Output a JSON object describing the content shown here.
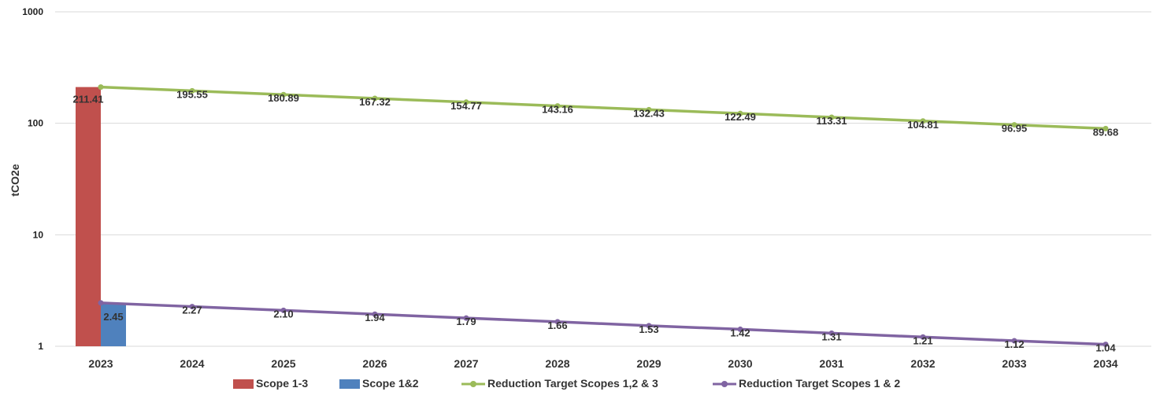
{
  "chart_data": {
    "type": "bar",
    "categories": [
      "2023",
      "2024",
      "2025",
      "2026",
      "2027",
      "2028",
      "2029",
      "2030",
      "2031",
      "2032",
      "2033",
      "2034"
    ],
    "ylabel": "tCO2e",
    "xlabel": "",
    "yscale": "log",
    "ylim": [
      1,
      1000
    ],
    "yticks": [
      "1",
      "10",
      "100",
      "1000"
    ],
    "grid": true,
    "legend_position": "bottom",
    "series": [
      {
        "name": "Scope 1-3",
        "kind": "bar",
        "color": "#c0504d",
        "values": [
          211.41,
          null,
          null,
          null,
          null,
          null,
          null,
          null,
          null,
          null,
          null,
          null
        ]
      },
      {
        "name": "Scope 1&2",
        "kind": "bar",
        "color": "#4f81bd",
        "values": [
          2.45,
          null,
          null,
          null,
          null,
          null,
          null,
          null,
          null,
          null,
          null,
          null
        ]
      },
      {
        "name": "Reduction Target Scopes 1,2 & 3",
        "kind": "line",
        "color": "#9bbb59",
        "values": [
          211.41,
          195.55,
          180.89,
          167.32,
          154.77,
          143.16,
          132.43,
          122.49,
          113.31,
          104.81,
          96.95,
          89.68
        ]
      },
      {
        "name": "Reduction Target Scopes 1 & 2",
        "kind": "line",
        "color": "#8064a2",
        "values": [
          2.45,
          2.27,
          2.1,
          1.94,
          1.79,
          1.66,
          1.53,
          1.42,
          1.31,
          1.21,
          1.12,
          1.04
        ]
      }
    ],
    "data_labels": {
      "green": [
        "211.41",
        "195.55",
        "180.89",
        "167.32",
        "154.77",
        "143.16",
        "132.43",
        "122.49",
        "113.31",
        "104.81",
        "96.95",
        "89.68"
      ],
      "purple": [
        "2.45",
        "2.27",
        "2.10",
        "1.94",
        "1.79",
        "1.66",
        "1.53",
        "1.42",
        "1.31",
        "1.21",
        "1.12",
        "1.04"
      ]
    }
  }
}
